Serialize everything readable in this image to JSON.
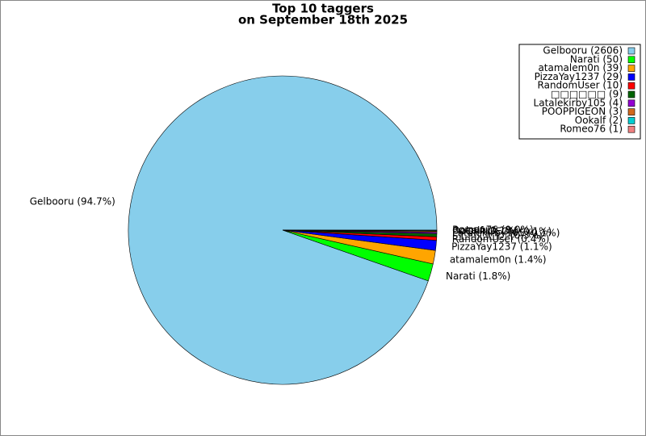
{
  "chart_data": {
    "type": "pie",
    "title": [
      "Top 10 taggers",
      "on September 18th 2025"
    ],
    "categories": [
      "Gelbooru (2606)",
      "Narati (50)",
      "atamalem0n (39)",
      "PizzaYay1237 (29)",
      "RandomUser (10)",
      "□□□□□□ (9)",
      "Latalekirby105 (4)",
      "POOPPIGEON (3)",
      "Ookalf (2)",
      "Romeo76 (1)"
    ],
    "values": [
      2606,
      50,
      39,
      29,
      10,
      9,
      4,
      3,
      2,
      1
    ],
    "value_labels": [
      "Gelbooru (94.7%)",
      "Narati (1.8%)",
      "atamalem0n (1.4%)",
      "PizzaYay1237 (1.1%)",
      "RandomUser (0.4%)",
      "□□□□□□ (0.3%)",
      "Latalekirby105 (0.1%)",
      "POOPPIGEON (0.1%)",
      "Ookalf (0.1%)",
      "Romeo76 (0.0%)"
    ],
    "colors": [
      "#87ceeb",
      "#00ff00",
      "#ffa500",
      "#0000ff",
      "#ff0000",
      "#006400",
      "#9400d3",
      "#d2691e",
      "#00ced1",
      "#f08080"
    ],
    "legend": "upper right"
  }
}
